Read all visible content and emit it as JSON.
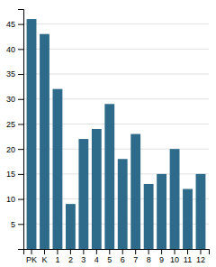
{
  "chart_data": {
    "type": "bar",
    "categories": [
      "PK",
      "K",
      "1",
      "2",
      "3",
      "4",
      "5",
      "6",
      "7",
      "8",
      "9",
      "10",
      "11",
      "12"
    ],
    "values": [
      46,
      43,
      32,
      9,
      22,
      24,
      29,
      18,
      23,
      13,
      15,
      20,
      12,
      15
    ],
    "color": "#2e6a8a",
    "ylim": [
      0,
      48
    ],
    "yticks": [
      5,
      10,
      15,
      20,
      25,
      30,
      35,
      40,
      45
    ],
    "grid": true
  }
}
